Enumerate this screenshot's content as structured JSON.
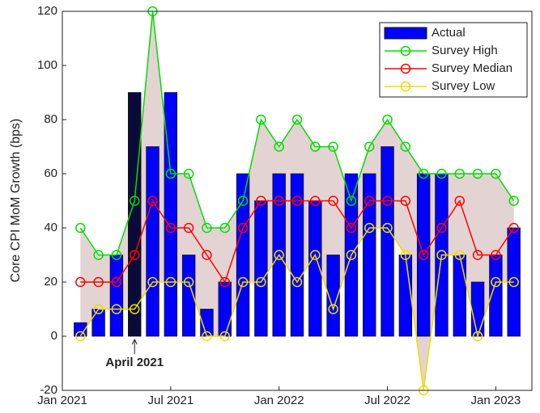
{
  "chart_data": {
    "type": "bar-line",
    "y_label": "Core CPI MoM Growth (bps)",
    "x": [
      "2021-02",
      "2021-03",
      "2021-04",
      "2021-05",
      "2021-06",
      "2021-07",
      "2021-08",
      "2021-09",
      "2021-10",
      "2021-11",
      "2021-12",
      "2022-01",
      "2022-02",
      "2022-03",
      "2022-04",
      "2022-05",
      "2022-06",
      "2022-07",
      "2022-08",
      "2022-09",
      "2022-10",
      "2022-11",
      "2022-12",
      "2023-01",
      "2023-02"
    ],
    "xlim": [
      "2021-01",
      "2023-03"
    ],
    "xticks": [
      {
        "value": "2021-01",
        "label": "Jan 2021"
      },
      {
        "value": "2021-07",
        "label": "Jul 2021"
      },
      {
        "value": "2022-01",
        "label": "Jan 2022"
      },
      {
        "value": "2022-07",
        "label": "Jul 2022"
      },
      {
        "value": "2023-01",
        "label": "Jan 2023"
      }
    ],
    "ylim": [
      -20,
      120
    ],
    "yticks": [
      -20,
      0,
      20,
      40,
      60,
      80,
      100,
      120
    ],
    "band_color": "#e4d3d3",
    "legend_position": "upper right",
    "series": [
      {
        "name": "Actual",
        "kind": "bar",
        "color": "#0000ff",
        "colors": [
          "#0000ff",
          "#0000ff",
          "#0000ff",
          "#0b0b3b",
          "#0000ff",
          "#0000ff",
          "#0000ff",
          "#0000ff",
          "#0000ff",
          "#0000ff",
          "#0000ff",
          "#0000ff",
          "#0000ff",
          "#0000ff",
          "#0000ff",
          "#0000ff",
          "#0000ff",
          "#0000ff",
          "#0000ff",
          "#0000ff",
          "#0000ff",
          "#0000ff",
          "#0000ff",
          "#0000ff",
          "#0000ff"
        ],
        "values": [
          5,
          10,
          30,
          90,
          70,
          90,
          30,
          10,
          20,
          60,
          50,
          60,
          60,
          50,
          30,
          60,
          60,
          70,
          30,
          60,
          60,
          30,
          20,
          30,
          40
        ]
      },
      {
        "name": "Survey High",
        "kind": "line",
        "color": "#00dd00",
        "values": [
          40,
          30,
          30,
          50,
          120,
          60,
          60,
          40,
          40,
          50,
          80,
          70,
          80,
          70,
          70,
          50,
          70,
          80,
          70,
          60,
          60,
          60,
          60,
          60,
          50
        ]
      },
      {
        "name": "Survey Median",
        "kind": "line",
        "color": "#ff0000",
        "values": [
          20,
          20,
          20,
          30,
          50,
          40,
          40,
          30,
          20,
          40,
          50,
          50,
          50,
          50,
          50,
          40,
          50,
          50,
          50,
          30,
          40,
          50,
          30,
          30,
          40
        ]
      },
      {
        "name": "Survey Low",
        "kind": "line",
        "color": "#eedd00",
        "values": [
          0,
          10,
          10,
          10,
          20,
          20,
          20,
          0,
          0,
          20,
          20,
          30,
          20,
          30,
          10,
          30,
          40,
          40,
          30,
          -20,
          30,
          30,
          0,
          20,
          20
        ]
      }
    ],
    "annotations": [
      {
        "text": "April 2021",
        "x": "2021-05"
      }
    ]
  }
}
